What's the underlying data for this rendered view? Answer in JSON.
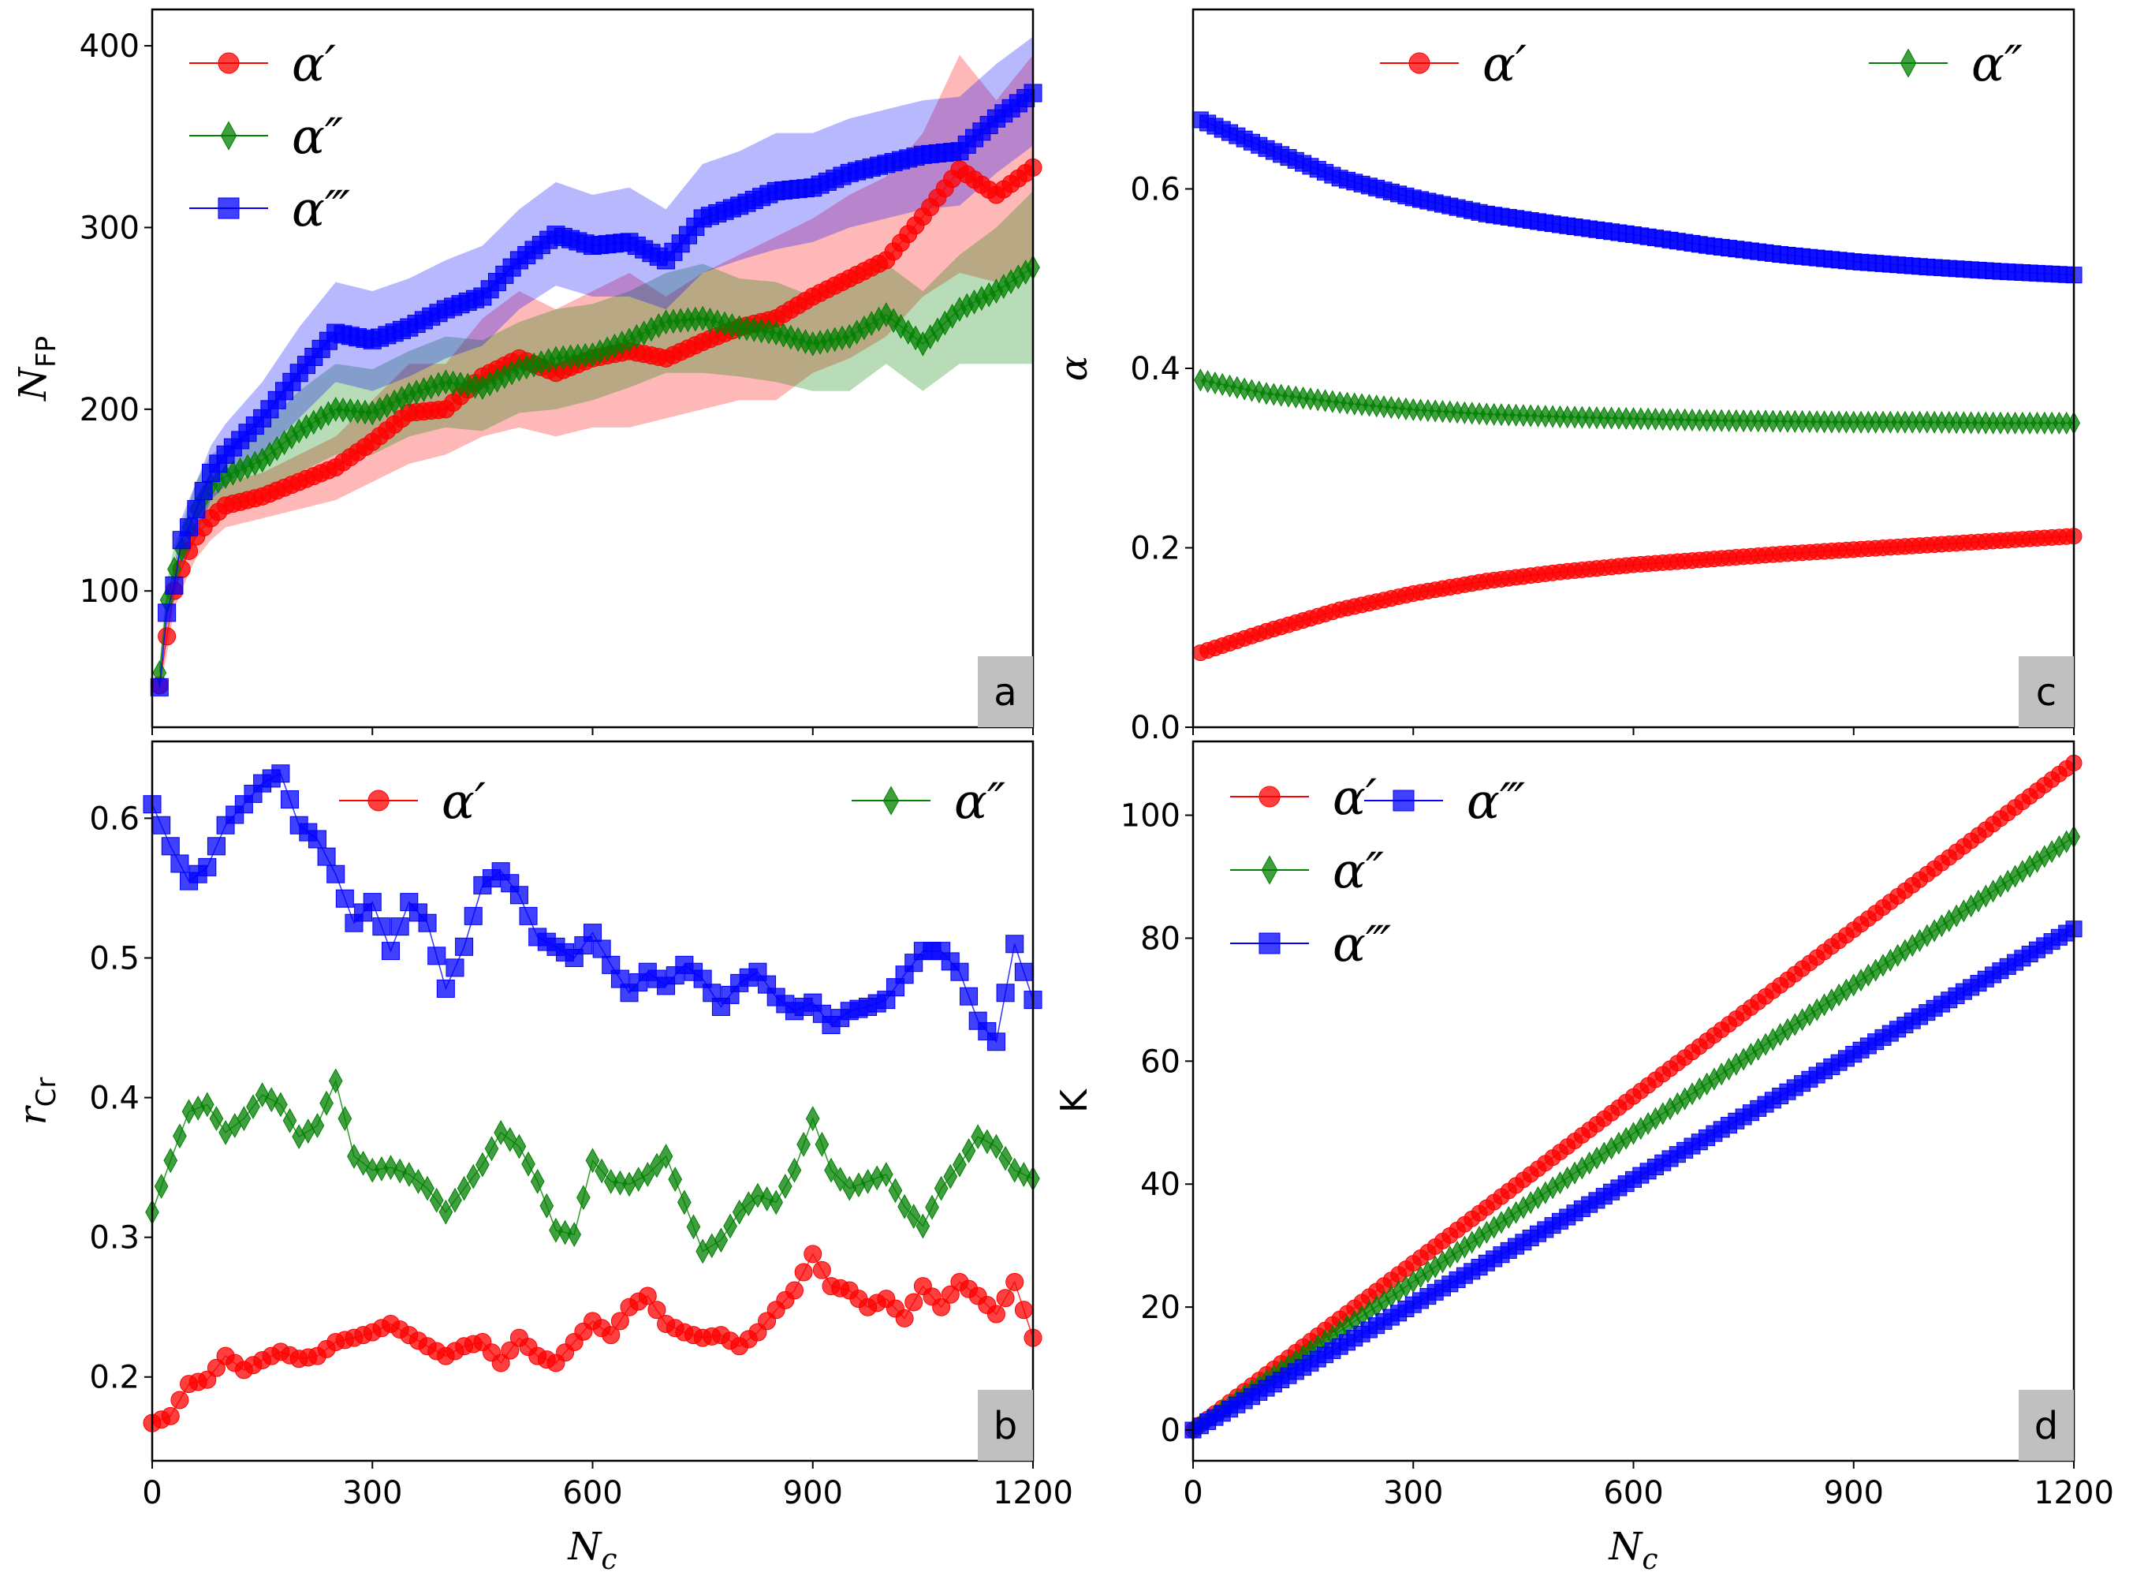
{
  "colors": {
    "red": "#ff0000",
    "green": "#008000",
    "blue": "#0000ff",
    "label_box": "#c0c0c0"
  },
  "chart_data": [
    {
      "panel": "a",
      "type": "line",
      "xlabel": "",
      "ylabel": "N_FP",
      "xlim": [
        0,
        1200
      ],
      "ylim": [
        25,
        420
      ],
      "xticks": [],
      "yticks": [
        100,
        200,
        300,
        400
      ],
      "legend_position": "top-left",
      "series": [
        {
          "name": "α′",
          "color": "#ff0000",
          "marker": "circle",
          "x": [
            10,
            20,
            30,
            40,
            50,
            60,
            80,
            100,
            150,
            200,
            250,
            300,
            350,
            400,
            450,
            500,
            550,
            600,
            650,
            700,
            750,
            800,
            850,
            900,
            950,
            1000,
            1050,
            1100,
            1150,
            1200
          ],
          "y": [
            48,
            75,
            100,
            112,
            122,
            130,
            140,
            147,
            152,
            160,
            168,
            182,
            198,
            200,
            218,
            228,
            220,
            228,
            232,
            228,
            237,
            245,
            250,
            262,
            272,
            282,
            306,
            332,
            318,
            333
          ],
          "band_low": [
            45,
            65,
            90,
            100,
            110,
            118,
            128,
            135,
            140,
            145,
            150,
            160,
            170,
            175,
            185,
            190,
            185,
            190,
            190,
            195,
            200,
            205,
            205,
            220,
            228,
            240,
            262,
            275,
            270,
            280
          ],
          "band_high": [
            52,
            85,
            110,
            125,
            135,
            142,
            152,
            160,
            165,
            175,
            185,
            205,
            225,
            225,
            250,
            265,
            255,
            265,
            275,
            262,
            275,
            285,
            295,
            305,
            318,
            328,
            352,
            395,
            370,
            395
          ]
        },
        {
          "name": "α″",
          "color": "#008000",
          "marker": "diamond",
          "x": [
            10,
            20,
            30,
            40,
            50,
            60,
            80,
            100,
            150,
            200,
            250,
            300,
            350,
            400,
            450,
            500,
            550,
            600,
            650,
            700,
            750,
            800,
            850,
            900,
            950,
            1000,
            1050,
            1100,
            1150,
            1200
          ],
          "y": [
            55,
            95,
            112,
            123,
            135,
            145,
            158,
            163,
            172,
            188,
            200,
            198,
            208,
            215,
            212,
            222,
            228,
            230,
            238,
            248,
            250,
            245,
            242,
            236,
            240,
            252,
            236,
            255,
            265,
            278
          ],
          "band_low": [
            50,
            85,
            100,
            112,
            122,
            130,
            142,
            148,
            155,
            165,
            175,
            175,
            185,
            190,
            188,
            198,
            200,
            205,
            212,
            220,
            220,
            218,
            215,
            210,
            210,
            225,
            210,
            225,
            225,
            225
          ],
          "band_high": [
            60,
            105,
            125,
            135,
            148,
            160,
            175,
            180,
            190,
            210,
            225,
            222,
            232,
            240,
            238,
            248,
            255,
            258,
            265,
            275,
            280,
            272,
            270,
            262,
            270,
            280,
            265,
            285,
            300,
            320
          ]
        },
        {
          "name": "α‴",
          "color": "#0000ff",
          "marker": "square",
          "x": [
            10,
            20,
            30,
            40,
            50,
            60,
            80,
            100,
            150,
            200,
            250,
            300,
            350,
            400,
            450,
            500,
            550,
            600,
            650,
            700,
            750,
            800,
            850,
            900,
            950,
            1000,
            1050,
            1100,
            1150,
            1200
          ],
          "y": [
            47,
            88,
            103,
            128,
            135,
            145,
            165,
            175,
            195,
            220,
            242,
            238,
            245,
            255,
            262,
            282,
            296,
            290,
            292,
            282,
            305,
            312,
            320,
            322,
            330,
            335,
            340,
            342,
            360,
            374
          ],
          "band_low": [
            45,
            80,
            95,
            115,
            120,
            130,
            150,
            158,
            175,
            195,
            215,
            210,
            218,
            228,
            235,
            255,
            268,
            262,
            262,
            255,
            275,
            282,
            288,
            292,
            300,
            305,
            310,
            312,
            330,
            345
          ],
          "band_high": [
            50,
            95,
            112,
            140,
            150,
            160,
            180,
            192,
            215,
            245,
            270,
            265,
            272,
            282,
            290,
            310,
            325,
            318,
            322,
            310,
            335,
            342,
            352,
            352,
            360,
            365,
            370,
            372,
            390,
            405
          ]
        }
      ]
    },
    {
      "panel": "b",
      "type": "line",
      "xlabel": "N_c",
      "ylabel": "r_Cr",
      "xlim": [
        0,
        1200
      ],
      "ylim": [
        0.14,
        0.655
      ],
      "xticks": [
        0,
        300,
        600,
        900,
        1200
      ],
      "yticks": [
        0.2,
        0.3,
        0.4,
        0.5,
        0.6
      ],
      "legend_position": "top-right",
      "series": [
        {
          "name": "α′",
          "color": "#ff0000",
          "marker": "circle",
          "x": [
            0,
            25,
            50,
            75,
            100,
            125,
            150,
            175,
            200,
            225,
            250,
            275,
            300,
            325,
            350,
            375,
            400,
            425,
            450,
            475,
            500,
            525,
            550,
            575,
            600,
            625,
            650,
            675,
            700,
            725,
            750,
            775,
            800,
            825,
            850,
            875,
            900,
            925,
            950,
            975,
            1000,
            1025,
            1050,
            1075,
            1100,
            1125,
            1150,
            1175,
            1200
          ],
          "y": [
            0.167,
            0.172,
            0.195,
            0.198,
            0.215,
            0.205,
            0.212,
            0.218,
            0.213,
            0.215,
            0.225,
            0.228,
            0.232,
            0.238,
            0.23,
            0.222,
            0.215,
            0.222,
            0.225,
            0.21,
            0.228,
            0.215,
            0.21,
            0.225,
            0.24,
            0.23,
            0.25,
            0.258,
            0.238,
            0.232,
            0.228,
            0.23,
            0.222,
            0.232,
            0.248,
            0.262,
            0.288,
            0.265,
            0.262,
            0.25,
            0.256,
            0.242,
            0.265,
            0.25,
            0.268,
            0.258,
            0.245,
            0.268,
            0.228
          ]
        },
        {
          "name": "α″",
          "color": "#008000",
          "marker": "diamond",
          "x": [
            0,
            25,
            50,
            75,
            100,
            125,
            150,
            175,
            200,
            225,
            250,
            275,
            300,
            325,
            350,
            375,
            400,
            425,
            450,
            475,
            500,
            525,
            550,
            575,
            600,
            625,
            650,
            675,
            700,
            725,
            750,
            775,
            800,
            825,
            850,
            875,
            900,
            925,
            950,
            975,
            1000,
            1025,
            1050,
            1075,
            1100,
            1125,
            1150,
            1175,
            1200
          ],
          "y": [
            0.318,
            0.355,
            0.39,
            0.395,
            0.375,
            0.385,
            0.402,
            0.395,
            0.372,
            0.38,
            0.412,
            0.358,
            0.348,
            0.35,
            0.345,
            0.335,
            0.318,
            0.335,
            0.352,
            0.375,
            0.365,
            0.34,
            0.305,
            0.302,
            0.355,
            0.34,
            0.338,
            0.345,
            0.358,
            0.325,
            0.29,
            0.298,
            0.318,
            0.33,
            0.325,
            0.348,
            0.385,
            0.348,
            0.335,
            0.34,
            0.345,
            0.322,
            0.308,
            0.335,
            0.352,
            0.372,
            0.365,
            0.348,
            0.342
          ]
        },
        {
          "name": "α‴",
          "color": "#0000ff",
          "marker": "square",
          "x": [
            0,
            25,
            50,
            75,
            100,
            125,
            150,
            175,
            200,
            225,
            250,
            275,
            300,
            325,
            350,
            375,
            400,
            425,
            450,
            475,
            500,
            525,
            550,
            575,
            600,
            625,
            650,
            675,
            700,
            725,
            750,
            775,
            800,
            825,
            850,
            875,
            900,
            925,
            950,
            975,
            1000,
            1025,
            1050,
            1075,
            1100,
            1125,
            1150,
            1175,
            1200
          ],
          "y": [
            0.61,
            0.58,
            0.555,
            0.565,
            0.595,
            0.61,
            0.625,
            0.632,
            0.595,
            0.585,
            0.56,
            0.525,
            0.54,
            0.505,
            0.54,
            0.525,
            0.478,
            0.508,
            0.552,
            0.562,
            0.545,
            0.515,
            0.508,
            0.5,
            0.518,
            0.495,
            0.475,
            0.49,
            0.48,
            0.495,
            0.485,
            0.465,
            0.482,
            0.49,
            0.472,
            0.462,
            0.468,
            0.452,
            0.462,
            0.465,
            0.47,
            0.488,
            0.505,
            0.505,
            0.49,
            0.455,
            0.44,
            0.51,
            0.47
          ]
        }
      ]
    },
    {
      "panel": "c",
      "type": "line",
      "xlabel": "",
      "ylabel": "α",
      "xlim": [
        0,
        1200
      ],
      "ylim": [
        0.0,
        0.8
      ],
      "xticks": [],
      "yticks": [
        0.0,
        0.2,
        0.4,
        0.6
      ],
      "legend_position": "top",
      "series": [
        {
          "name": "α′",
          "color": "#ff0000",
          "marker": "circle",
          "x": [
            10,
            100,
            200,
            300,
            400,
            500,
            600,
            700,
            800,
            900,
            1000,
            1100,
            1200
          ],
          "y": [
            0.083,
            0.107,
            0.131,
            0.149,
            0.163,
            0.173,
            0.181,
            0.187,
            0.193,
            0.198,
            0.203,
            0.208,
            0.213
          ]
        },
        {
          "name": "α″",
          "color": "#008000",
          "marker": "diamond",
          "x": [
            10,
            100,
            200,
            300,
            400,
            500,
            600,
            700,
            800,
            900,
            1000,
            1100,
            1200
          ],
          "y": [
            0.387,
            0.372,
            0.362,
            0.354,
            0.349,
            0.346,
            0.344,
            0.342,
            0.341,
            0.34,
            0.34,
            0.339,
            0.339
          ]
        },
        {
          "name": "α‴",
          "color": "#0000ff",
          "marker": "square",
          "x": [
            10,
            100,
            200,
            300,
            400,
            500,
            600,
            700,
            800,
            900,
            1000,
            1100,
            1200
          ],
          "y": [
            0.677,
            0.645,
            0.612,
            0.59,
            0.572,
            0.56,
            0.549,
            0.537,
            0.527,
            0.519,
            0.513,
            0.508,
            0.504
          ]
        }
      ]
    },
    {
      "panel": "d",
      "type": "line",
      "xlabel": "N_c",
      "ylabel": "K",
      "xlim": [
        0,
        1200
      ],
      "ylim": [
        -5,
        112
      ],
      "xticks": [
        0,
        300,
        600,
        900,
        1200
      ],
      "yticks": [
        0,
        20,
        40,
        60,
        80,
        100
      ],
      "legend_position": "top-left",
      "series": [
        {
          "name": "α′",
          "color": "#ff0000",
          "marker": "circle",
          "x": [
            0,
            1200
          ],
          "y": [
            0,
            108.5
          ]
        },
        {
          "name": "α″",
          "color": "#008000",
          "marker": "diamond",
          "x": [
            0,
            1200
          ],
          "y": [
            0,
            96.5
          ]
        },
        {
          "name": "α‴",
          "color": "#0000ff",
          "marker": "square",
          "x": [
            0,
            1200
          ],
          "y": [
            0,
            81.5
          ]
        }
      ]
    }
  ]
}
